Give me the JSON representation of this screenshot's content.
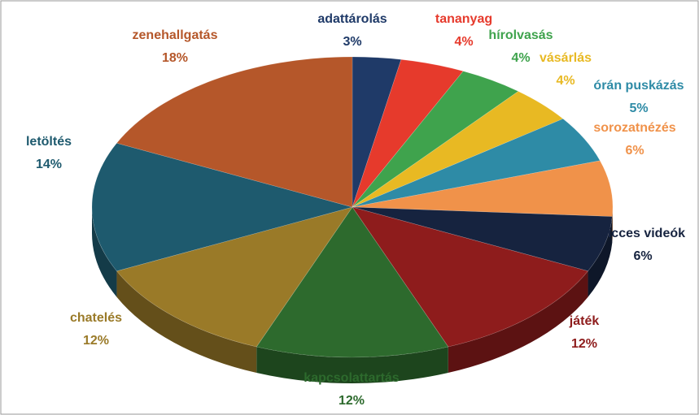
{
  "chart_data": {
    "type": "pie",
    "categories": [
      "adattárolás",
      "tananyag",
      "hírolvasás",
      "vásárlás",
      "órán puskázás",
      "sorozatnézés",
      "vicces videók",
      "játék",
      "kapcsolattartás",
      "chatelés",
      "letöltés",
      "zenehallgatás"
    ],
    "values": [
      3,
      4,
      4,
      4,
      5,
      6,
      6,
      12,
      12,
      12,
      14,
      18
    ],
    "value_labels": [
      "3%",
      "4%",
      "4%",
      "4%",
      "5%",
      "6%",
      "6%",
      "12%",
      "12%",
      "12%",
      "14%",
      "18%"
    ],
    "colors": [
      "#1f3a68",
      "#e63a2c",
      "#3fa34d",
      "#e8b923",
      "#2e8ba6",
      "#f0924a",
      "#16233f",
      "#8e1c1c",
      "#2d6a2d",
      "#9a7a28",
      "#1e5a6e",
      "#b5572a"
    ]
  }
}
